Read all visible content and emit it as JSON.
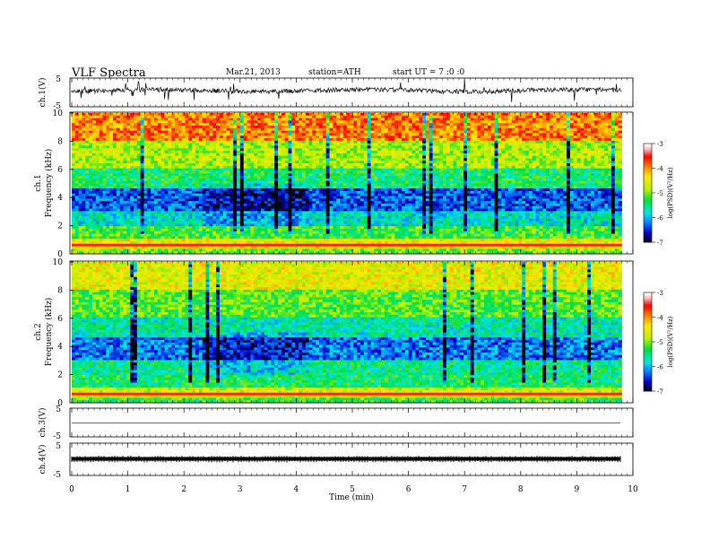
{
  "header": {
    "title": "VLF Spectra",
    "date": "Mar.21, 2013",
    "station": "station=ATH",
    "start": "start UT = 7 :0 :0"
  },
  "chart_data": [
    {
      "type": "line",
      "panel": "ch1-waveform",
      "ylabel": "ch.1(V)",
      "yticks": [
        "5",
        "-5"
      ],
      "ylim": [
        -5,
        5
      ],
      "xlim": [
        0,
        10
      ],
      "trace": "noisy waveform centered near 0 V with frequent spikes"
    },
    {
      "type": "heatmap",
      "panel": "ch1-spectrogram",
      "ylabel": "ch.1\nFrequency (kHz)",
      "ylabel_lines": [
        "ch.1",
        "Frequency (kHz)"
      ],
      "yticks": [
        "10",
        "8",
        "6",
        "4",
        "2",
        "0"
      ],
      "ylim": [
        0,
        10
      ],
      "xlim": [
        0,
        10
      ],
      "data_end_min": 9.8,
      "colorbar": {
        "label": "log(PSD)(V²/Hz)",
        "ticks": [
          "-3",
          "-4",
          "-5",
          "-6",
          "-7"
        ],
        "range": [
          -7,
          -3
        ],
        "colors": [
          "#000000",
          "#0000c8",
          "#0080ff",
          "#00e8e8",
          "#00e040",
          "#c0f000",
          "#ffe800",
          "#ff8000",
          "#ff0000",
          "#ffb8b8",
          "#ffffff"
        ]
      },
      "bands_logpsd": [
        {
          "f": [
            8.0,
            10.0
          ],
          "v": -3.9
        },
        {
          "f": [
            6.0,
            8.0
          ],
          "v": -4.8
        },
        {
          "f": [
            4.6,
            6.0
          ],
          "v": -5.4
        },
        {
          "f": [
            3.0,
            4.6
          ],
          "v": -6.3
        },
        {
          "f": [
            2.0,
            3.0
          ],
          "v": -5.7
        },
        {
          "f": [
            1.0,
            2.0
          ],
          "v": -5.2
        },
        {
          "f": [
            0.4,
            1.0
          ],
          "v": -4.5
        },
        {
          "f": [
            0.0,
            0.4
          ],
          "v": -5.0
        }
      ]
    },
    {
      "type": "heatmap",
      "panel": "ch2-spectrogram",
      "ylabel": "ch.2\nFrequency (kHz)",
      "ylabel_lines": [
        "ch.2",
        "Frequency (kHz)"
      ],
      "yticks": [
        "10",
        "8",
        "6",
        "4",
        "2",
        "0"
      ],
      "ylim": [
        0,
        10
      ],
      "xlim": [
        0,
        10
      ],
      "data_end_min": 9.8,
      "colorbar": {
        "label": "log(PSD)(V²/Hz)",
        "ticks": [
          "-3",
          "-4",
          "-5",
          "-6",
          "-7"
        ],
        "range": [
          -7,
          -3
        ]
      },
      "bands_logpsd": [
        {
          "f": [
            8.0,
            10.0
          ],
          "v": -4.5
        },
        {
          "f": [
            6.0,
            8.0
          ],
          "v": -5.1
        },
        {
          "f": [
            4.6,
            6.0
          ],
          "v": -5.6
        },
        {
          "f": [
            3.0,
            4.6
          ],
          "v": -6.2
        },
        {
          "f": [
            2.0,
            3.0
          ],
          "v": -5.5
        },
        {
          "f": [
            1.0,
            2.0
          ],
          "v": -5.4
        },
        {
          "f": [
            0.4,
            1.0
          ],
          "v": -4.6
        },
        {
          "f": [
            0.0,
            0.4
          ],
          "v": -5.2
        }
      ]
    },
    {
      "type": "line",
      "panel": "ch3-waveform",
      "ylabel": "ch.3(V)",
      "yticks": [
        "5",
        "-5"
      ],
      "ylim": [
        -5,
        5
      ],
      "xlim": [
        0,
        10
      ],
      "trace": "flat line near 0 V"
    },
    {
      "type": "line",
      "panel": "ch4-waveform",
      "ylabel": "ch.4(V)",
      "yticks": [
        "5",
        "-5"
      ],
      "ylim": [
        -5,
        5
      ],
      "xlim": [
        0,
        10
      ],
      "trace": "thick dense signal near 0 V"
    }
  ],
  "xaxis": {
    "label": "Time (min)",
    "ticks": [
      "0",
      "1",
      "2",
      "3",
      "4",
      "5",
      "6",
      "7",
      "8",
      "9",
      "10"
    ],
    "range": [
      0,
      10
    ]
  }
}
